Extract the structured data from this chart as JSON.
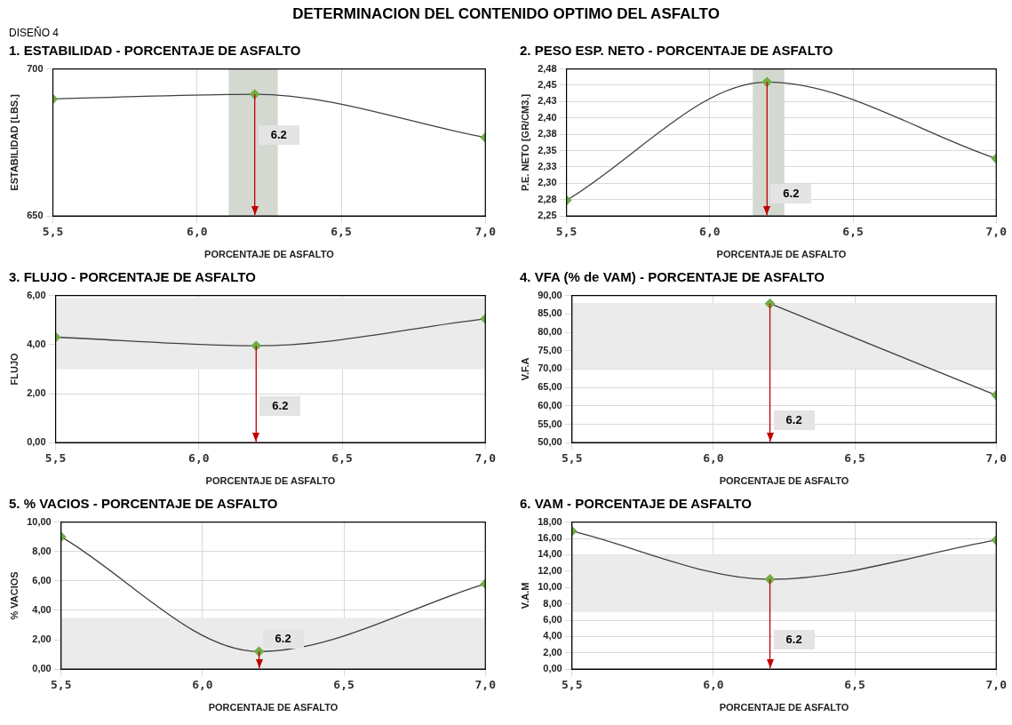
{
  "chart_data": [
    {
      "type": "line",
      "title": "1. ESTABILIDAD  - PORCENTAJE DE ASFALTO",
      "xlabel": "PORCENTAJE DE ASFALTO",
      "ylabel": "ESTABILIDAD [LBS.]",
      "annotations": [
        "DETERMINACION DEL CONTENIDO OPTIMO DEL ASFALTO",
        "DISEÑO 4"
      ],
      "x": [
        5.5,
        6.2,
        7.0
      ],
      "series": [
        {
          "color": "#404040",
          "colors": [
            "#70ad47",
            "#70ad47",
            "#70ad47"
          ],
          "values": [
            689.8,
            691.4,
            676.7
          ]
        }
      ],
      "xlim": [
        5.5,
        7.0
      ],
      "xticks": [
        {
          "value": 5.5,
          "label": "5,5"
        },
        {
          "value": 6.0,
          "label": "6,0"
        },
        {
          "value": 6.5,
          "label": "6,5"
        },
        {
          "value": 7.0,
          "label": "7,0"
        }
      ],
      "ylim": [
        650,
        700
      ],
      "yticks": [
        650,
        700
      ],
      "ref_lines": [
        {
          "axis": "x",
          "value": 6.2,
          "label": "6.2",
          "color": "#c00000"
        }
      ],
      "bands": [
        {
          "axis": "x",
          "from": 6.11,
          "to": 6.28,
          "color": "#d3d9d0"
        }
      ],
      "grid": true,
      "marker": "diamond",
      "line_style": "solid"
    },
    {
      "type": "line",
      "title": "2. PESO ESP. NETO  - PORCENTAJE DE ASFALTO",
      "xlabel": "PORCENTAJE DE ASFALTO",
      "ylabel": "P.E. NETO [GR/CM3.]",
      "x": [
        5.5,
        6.2,
        7.0
      ],
      "series": [
        {
          "color": "#404040",
          "colors": [
            "#70ad47",
            "#70ad47",
            "#70ad47"
          ],
          "values": [
            2.274,
            2.455,
            2.338
          ]
        }
      ],
      "xlim": [
        5.5,
        7.0
      ],
      "xticks": [
        {
          "value": 5.5,
          "label": "5,5"
        },
        {
          "value": 6.0,
          "label": "6,0"
        },
        {
          "value": 6.5,
          "label": "6,5"
        },
        {
          "value": 7.0,
          "label": "7,0"
        }
      ],
      "ylim": [
        2.25,
        2.475
      ],
      "yticks": [
        {
          "value": 2.25,
          "label": "2,25"
        },
        {
          "value": 2.275,
          "label": "2,28"
        },
        {
          "value": 2.3,
          "label": "2,30"
        },
        {
          "value": 2.325,
          "label": "2,33"
        },
        {
          "value": 2.35,
          "label": "2,35"
        },
        {
          "value": 2.375,
          "label": "2,38"
        },
        {
          "value": 2.4,
          "label": "2,40"
        },
        {
          "value": 2.425,
          "label": "2,43"
        },
        {
          "value": 2.45,
          "label": "2,45"
        },
        {
          "value": 2.475,
          "label": "2,48"
        }
      ],
      "ref_lines": [
        {
          "axis": "x",
          "value": 6.2,
          "label": "6.2",
          "color": "#c00000"
        }
      ],
      "bands": [
        {
          "axis": "x",
          "from": 6.15,
          "to": 6.26,
          "color": "#d3d9d0"
        }
      ],
      "grid": true,
      "marker": "diamond",
      "line_style": "solid"
    },
    {
      "type": "line",
      "title": "3. FLUJO  - PORCENTAJE DE ASFALTO",
      "xlabel": "PORCENTAJE DE ASFALTO",
      "ylabel": "FLUJO",
      "x": [
        5.5,
        6.2,
        7.0
      ],
      "series": [
        {
          "color": "#404040",
          "colors": [
            "#70ad47",
            "#70ad47",
            "#70ad47"
          ],
          "values": [
            4.3,
            3.95,
            5.05
          ]
        }
      ],
      "xlim": [
        5.5,
        7.0
      ],
      "xticks": [
        {
          "value": 5.5,
          "label": "5,5"
        },
        {
          "value": 6.0,
          "label": "6,0"
        },
        {
          "value": 6.5,
          "label": "6,5"
        },
        {
          "value": 7.0,
          "label": "7,0"
        }
      ],
      "ylim": [
        0,
        6
      ],
      "yticks": [
        {
          "value": 0,
          "label": "0,00"
        },
        {
          "value": 2,
          "label": "2,00"
        },
        {
          "value": 4,
          "label": "4,00"
        },
        {
          "value": 6,
          "label": "6,00"
        }
      ],
      "ref_lines": [
        {
          "axis": "x",
          "value": 6.2,
          "label": "6.2",
          "color": "#c00000"
        }
      ],
      "bands": [
        {
          "axis": "y",
          "from": 3,
          "to": 5.9,
          "color": "#ebebeb"
        }
      ],
      "grid": true,
      "marker": "diamond",
      "line_style": "solid"
    },
    {
      "type": "line",
      "title": "4. VFA (% de VAM)  - PORCENTAJE DE ASFALTO",
      "xlabel": "PORCENTAJE DE ASFALTO",
      "ylabel": "V.F.A",
      "series": [
        {
          "color": "#404040",
          "colors": [
            "#70ad47",
            "#70ad47"
          ],
          "x": [
            6.2,
            7.0
          ],
          "values": [
            87.8,
            62.9
          ]
        }
      ],
      "xlim": [
        5.5,
        7.0
      ],
      "xticks": [
        {
          "value": 5.5,
          "label": "5,5"
        },
        {
          "value": 6.0,
          "label": "6,0"
        },
        {
          "value": 6.5,
          "label": "6,5"
        },
        {
          "value": 7.0,
          "label": "7,0"
        }
      ],
      "ylim": [
        50,
        90
      ],
      "yticks": [
        {
          "value": 50,
          "label": "50,00"
        },
        {
          "value": 55,
          "label": "55,00"
        },
        {
          "value": 60,
          "label": "60,00"
        },
        {
          "value": 65,
          "label": "65,00"
        },
        {
          "value": 70,
          "label": "70,00"
        },
        {
          "value": 75,
          "label": "75,00"
        },
        {
          "value": 80,
          "label": "80,00"
        },
        {
          "value": 85,
          "label": "85,00"
        },
        {
          "value": 90,
          "label": "90,00"
        }
      ],
      "ref_lines": [
        {
          "axis": "x",
          "value": 6.2,
          "label": "6.2",
          "color": "#c00000"
        }
      ],
      "bands": [
        {
          "axis": "y",
          "from": 70,
          "to": 88,
          "color": "#ebebeb"
        }
      ],
      "grid": true,
      "marker": "diamond",
      "line_style": "solid"
    },
    {
      "type": "line",
      "title": "5. % VACIOS  - PORCENTAJE DE ASFALTO",
      "xlabel": "PORCENTAJE DE ASFALTO",
      "ylabel": "% VACIOS",
      "x": [
        5.5,
        6.2,
        7.0
      ],
      "series": [
        {
          "color": "#404040",
          "colors": [
            "#70ad47",
            "#70ad47",
            "#70ad47"
          ],
          "values": [
            9.0,
            1.2,
            5.8
          ]
        }
      ],
      "xlim": [
        5.5,
        7.0
      ],
      "xticks": [
        {
          "value": 5.5,
          "label": "5,5"
        },
        {
          "value": 6.0,
          "label": "6,0"
        },
        {
          "value": 6.5,
          "label": "6,5"
        },
        {
          "value": 7.0,
          "label": "7,0"
        }
      ],
      "ylim": [
        0,
        10
      ],
      "yticks": [
        {
          "value": 0,
          "label": "0,00"
        },
        {
          "value": 2,
          "label": "2,00"
        },
        {
          "value": 4,
          "label": "4,00"
        },
        {
          "value": 6,
          "label": "6,00"
        },
        {
          "value": 8,
          "label": "8,00"
        },
        {
          "value": 10,
          "label": "10,00"
        }
      ],
      "ref_lines": [
        {
          "axis": "x",
          "value": 6.2,
          "label": "6.2",
          "color": "#c00000"
        }
      ],
      "bands": [
        {
          "axis": "y",
          "from": 0,
          "to": 3.5,
          "color": "#ebebeb"
        }
      ],
      "grid": true,
      "marker": "diamond",
      "line_style": "solid"
    },
    {
      "type": "line",
      "title": "6. VAM - PORCENTAJE DE ASFALTO",
      "xlabel": "PORCENTAJE DE ASFALTO",
      "ylabel": "V.A.M",
      "x": [
        5.5,
        6.2,
        7.0
      ],
      "series": [
        {
          "color": "#404040",
          "colors": [
            "#70ad47",
            "#70ad47",
            "#70ad47"
          ],
          "values": [
            16.9,
            11.0,
            15.8
          ]
        }
      ],
      "xlim": [
        5.5,
        7.0
      ],
      "xticks": [
        {
          "value": 5.5,
          "label": "5,5"
        },
        {
          "value": 6.0,
          "label": "6,0"
        },
        {
          "value": 6.5,
          "label": "6,5"
        },
        {
          "value": 7.0,
          "label": "7,0"
        }
      ],
      "ylim": [
        0,
        18
      ],
      "yticks": [
        {
          "value": 0,
          "label": "0,00"
        },
        {
          "value": 2,
          "label": "2,00"
        },
        {
          "value": 4,
          "label": "4,00"
        },
        {
          "value": 6,
          "label": "6,00"
        },
        {
          "value": 8,
          "label": "8,00"
        },
        {
          "value": 10,
          "label": "10,00"
        },
        {
          "value": 12,
          "label": "12,00"
        },
        {
          "value": 14,
          "label": "14,00"
        },
        {
          "value": 16,
          "label": "16,00"
        },
        {
          "value": 18,
          "label": "18,00"
        }
      ],
      "ref_lines": [
        {
          "axis": "x",
          "value": 6.2,
          "label": "6.2",
          "color": "#c00000"
        }
      ],
      "bands": [
        {
          "axis": "y",
          "from": 7,
          "to": 14,
          "color": "#ebebeb"
        }
      ],
      "grid": true,
      "marker": "diamond",
      "line_style": "solid"
    }
  ]
}
